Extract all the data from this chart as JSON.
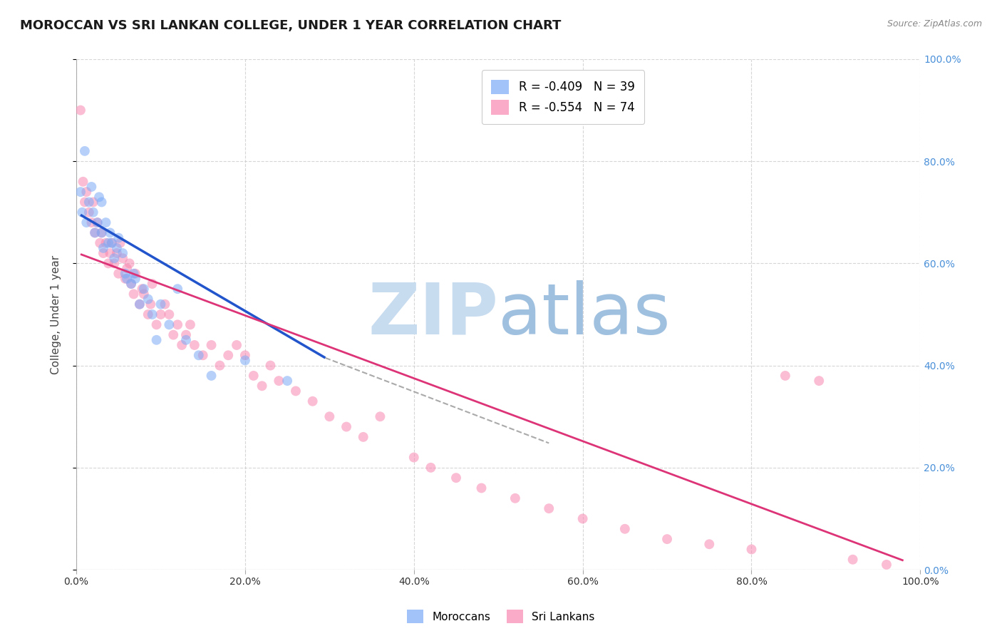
{
  "title": "MOROCCAN VS SRI LANKAN COLLEGE, UNDER 1 YEAR CORRELATION CHART",
  "source_text": "Source: ZipAtlas.com",
  "ylabel": "College, Under 1 year",
  "xlim": [
    0.0,
    1.0
  ],
  "ylim": [
    0.0,
    1.0
  ],
  "x_tick_vals": [
    0.0,
    0.2,
    0.4,
    0.6,
    0.8,
    1.0
  ],
  "y_tick_vals": [
    0.0,
    0.2,
    0.4,
    0.6,
    0.8,
    1.0
  ],
  "moroccan_color": "#7baaf7",
  "srilankan_color": "#f788b0",
  "moroccan_R": -0.409,
  "moroccan_N": 39,
  "srilankan_R": -0.554,
  "srilankan_N": 74,
  "moroccan_scatter_x": [
    0.005,
    0.007,
    0.01,
    0.012,
    0.015,
    0.018,
    0.02,
    0.022,
    0.025,
    0.027,
    0.03,
    0.03,
    0.032,
    0.035,
    0.038,
    0.04,
    0.042,
    0.045,
    0.048,
    0.05,
    0.055,
    0.058,
    0.06,
    0.065,
    0.068,
    0.07,
    0.075,
    0.08,
    0.085,
    0.09,
    0.095,
    0.1,
    0.11,
    0.12,
    0.13,
    0.145,
    0.16,
    0.2,
    0.25
  ],
  "moroccan_scatter_y": [
    0.74,
    0.7,
    0.82,
    0.68,
    0.72,
    0.75,
    0.7,
    0.66,
    0.68,
    0.73,
    0.72,
    0.66,
    0.63,
    0.68,
    0.64,
    0.66,
    0.64,
    0.61,
    0.63,
    0.65,
    0.62,
    0.58,
    0.57,
    0.56,
    0.58,
    0.57,
    0.52,
    0.55,
    0.53,
    0.5,
    0.45,
    0.52,
    0.48,
    0.55,
    0.45,
    0.42,
    0.38,
    0.41,
    0.37
  ],
  "srilankan_scatter_x": [
    0.005,
    0.008,
    0.01,
    0.012,
    0.015,
    0.018,
    0.02,
    0.022,
    0.025,
    0.028,
    0.03,
    0.032,
    0.035,
    0.038,
    0.04,
    0.042,
    0.045,
    0.048,
    0.05,
    0.052,
    0.055,
    0.058,
    0.06,
    0.063,
    0.065,
    0.068,
    0.07,
    0.075,
    0.078,
    0.08,
    0.085,
    0.088,
    0.09,
    0.095,
    0.1,
    0.105,
    0.11,
    0.115,
    0.12,
    0.125,
    0.13,
    0.135,
    0.14,
    0.15,
    0.16,
    0.17,
    0.18,
    0.19,
    0.2,
    0.21,
    0.22,
    0.23,
    0.24,
    0.26,
    0.28,
    0.3,
    0.32,
    0.34,
    0.36,
    0.4,
    0.42,
    0.45,
    0.48,
    0.52,
    0.56,
    0.6,
    0.65,
    0.7,
    0.75,
    0.8,
    0.84,
    0.88,
    0.92,
    0.96
  ],
  "srilankan_scatter_y": [
    0.9,
    0.76,
    0.72,
    0.74,
    0.7,
    0.68,
    0.72,
    0.66,
    0.68,
    0.64,
    0.66,
    0.62,
    0.64,
    0.6,
    0.62,
    0.64,
    0.6,
    0.62,
    0.58,
    0.64,
    0.61,
    0.57,
    0.59,
    0.6,
    0.56,
    0.54,
    0.58,
    0.52,
    0.55,
    0.54,
    0.5,
    0.52,
    0.56,
    0.48,
    0.5,
    0.52,
    0.5,
    0.46,
    0.48,
    0.44,
    0.46,
    0.48,
    0.44,
    0.42,
    0.44,
    0.4,
    0.42,
    0.44,
    0.42,
    0.38,
    0.36,
    0.4,
    0.37,
    0.35,
    0.33,
    0.3,
    0.28,
    0.26,
    0.3,
    0.22,
    0.2,
    0.18,
    0.16,
    0.14,
    0.12,
    0.1,
    0.08,
    0.06,
    0.05,
    0.04,
    0.38,
    0.37,
    0.02,
    0.01
  ],
  "moroccan_trend_x": [
    0.005,
    0.295
  ],
  "moroccan_trend_y": [
    0.695,
    0.415
  ],
  "srilankan_trend_x": [
    0.005,
    0.98
  ],
  "srilankan_trend_y": [
    0.618,
    0.018
  ],
  "dashed_trend_x": [
    0.295,
    0.56
  ],
  "dashed_trend_y": [
    0.415,
    0.248
  ],
  "watermark_zip": "ZIP",
  "watermark_atlas": "atlas",
  "watermark_color_zip": "#c8dcf0",
  "watermark_color_atlas": "#a0c0e0",
  "watermark_fontsize": 72,
  "background_color": "#ffffff",
  "grid_color": "#cccccc",
  "axis_label_color": "#4a90d9",
  "title_fontsize": 13,
  "label_fontsize": 11,
  "tick_fontsize": 10,
  "scatter_alpha": 0.55,
  "scatter_size": 100
}
